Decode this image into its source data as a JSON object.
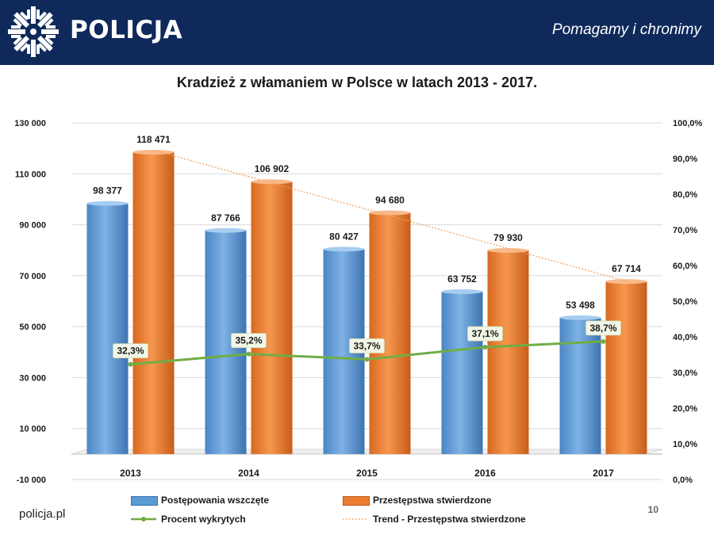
{
  "header": {
    "brand": "POLICJA",
    "slogan": "Pomagamy i chronimy"
  },
  "footer": {
    "site": "policja.pl",
    "page_number": "10"
  },
  "chart_data": {
    "type": "bar",
    "title": "Kradzież z włamaniem w Polsce w latach 2013 - 2017.",
    "categories": [
      "2013",
      "2014",
      "2015",
      "2016",
      "2017"
    ],
    "series": [
      {
        "name": "Postępowania wszczęte",
        "type": "bar",
        "color": "#5b9bd5",
        "values": [
          98377,
          87766,
          80427,
          63752,
          53498
        ],
        "labels": [
          "98 377",
          "87 766",
          "80 427",
          "63 752",
          "53 498"
        ]
      },
      {
        "name": "Przestępstwa stwierdzone",
        "type": "bar",
        "color": "#ed7d31",
        "values": [
          118471,
          106902,
          94680,
          79930,
          67714
        ],
        "labels": [
          "118 471",
          "106 902",
          "94 680",
          "79 930",
          "67 714"
        ]
      },
      {
        "name": "Procent wykrytych",
        "type": "line",
        "axis": "right",
        "color": "#70ad47",
        "values": [
          32.3,
          35.2,
          33.7,
          37.1,
          38.7
        ],
        "labels": [
          "32,3%",
          "35,2%",
          "33,7%",
          "37,1%",
          "38,7%"
        ]
      },
      {
        "name": "Trend - Przestępstwa stwierdzone",
        "type": "trendline",
        "color": "#f4a460"
      }
    ],
    "y_left": {
      "range": [
        -10000,
        130000
      ],
      "ticks": [
        "130 000",
        "110 000",
        "90 000",
        "70 000",
        "50 000",
        "30 000",
        "10 000",
        "-10 000"
      ]
    },
    "y_right": {
      "range": [
        0,
        100
      ],
      "ticks": [
        "100,0%",
        "90,0%",
        "80,0%",
        "70,0%",
        "60,0%",
        "50,0%",
        "40,0%",
        "30,0%",
        "20,0%",
        "10,0%",
        "0,0%"
      ]
    },
    "legend_position": "bottom"
  }
}
